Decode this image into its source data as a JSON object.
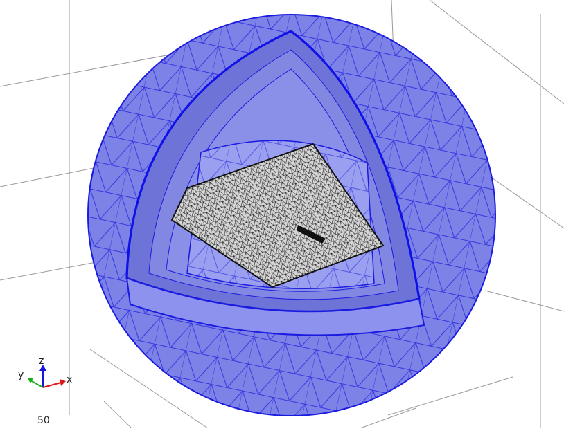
{
  "axis_triad": {
    "z": "z",
    "y": "y",
    "x": "x"
  },
  "scale_label": 50
}
